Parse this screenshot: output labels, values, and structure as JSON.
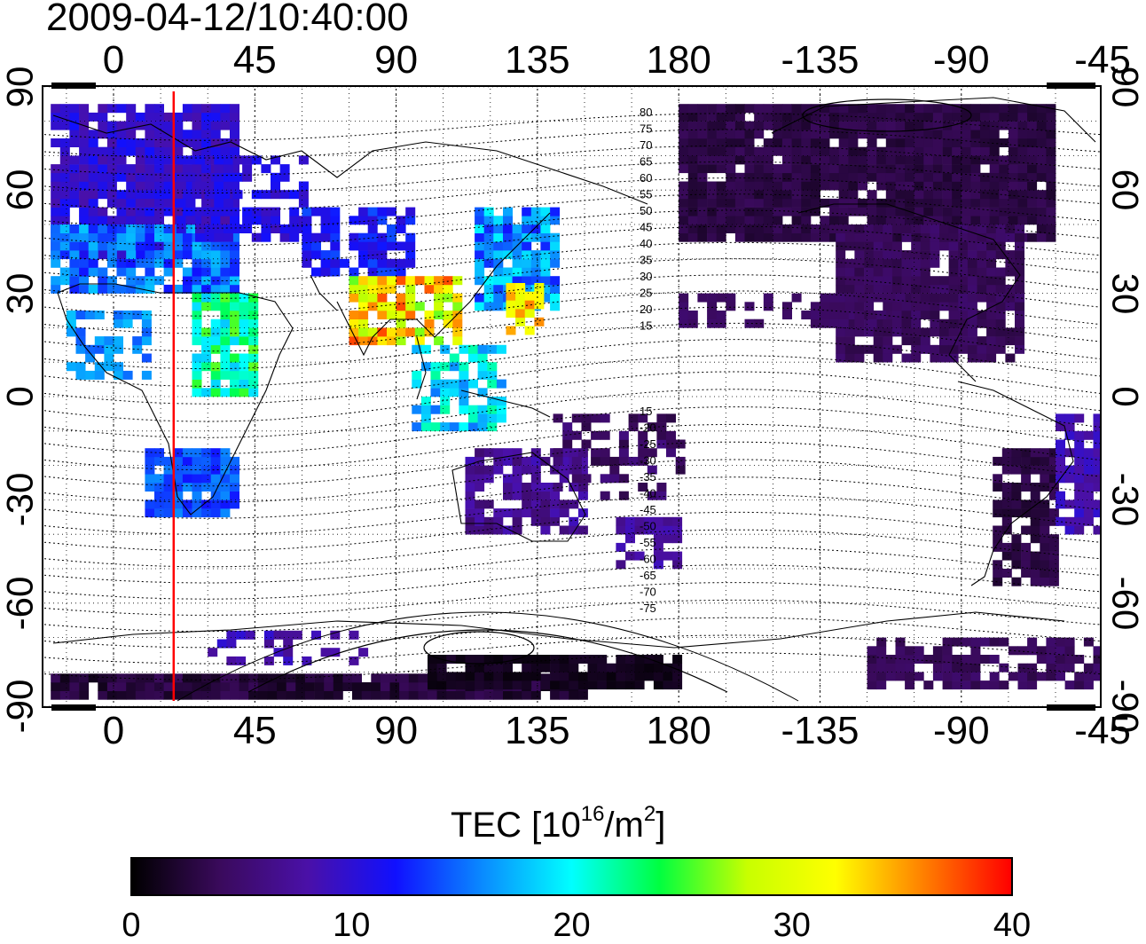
{
  "title": "2009-04-12/10:40:00",
  "map": {
    "lon_ticks": [
      "0",
      "45",
      "90",
      "135",
      "180",
      "-135",
      "-90",
      "-45"
    ],
    "lat_ticks_left": [
      "90",
      "60",
      "30",
      "0",
      "-30",
      "-60",
      "-90"
    ],
    "lat_ticks_right": [
      "90",
      "60",
      "30",
      "0",
      "-30",
      "-60",
      "-90"
    ],
    "contour_labels_north": [
      "80",
      "75",
      "70",
      "65",
      "60",
      "55",
      "50",
      "45",
      "40",
      "35",
      "30",
      "25",
      "20",
      "15"
    ],
    "contour_labels_south": [
      "15",
      "-20",
      "-25",
      "-30",
      "-35",
      "-40",
      "-45",
      "-50",
      "-55",
      "-60",
      "-65",
      "-70",
      "-75"
    ],
    "terminator_color": "#ff0000",
    "terminator_longitude": 20
  },
  "colorbar": {
    "label": "TEC  [10",
    "label_sup1": "16",
    "label_mid": "/m",
    "label_sup2": "2",
    "label_end": "]",
    "ticks": [
      "0",
      "10",
      "20",
      "30",
      "40"
    ],
    "range": [
      0,
      40
    ],
    "colormap": [
      "#000000",
      "#3a0a5c",
      "#4a10a8",
      "#1010ff",
      "#0a8cff",
      "#00ffff",
      "#00ff40",
      "#c8ff00",
      "#ffff00",
      "#ff8000",
      "#ff0000"
    ]
  }
}
